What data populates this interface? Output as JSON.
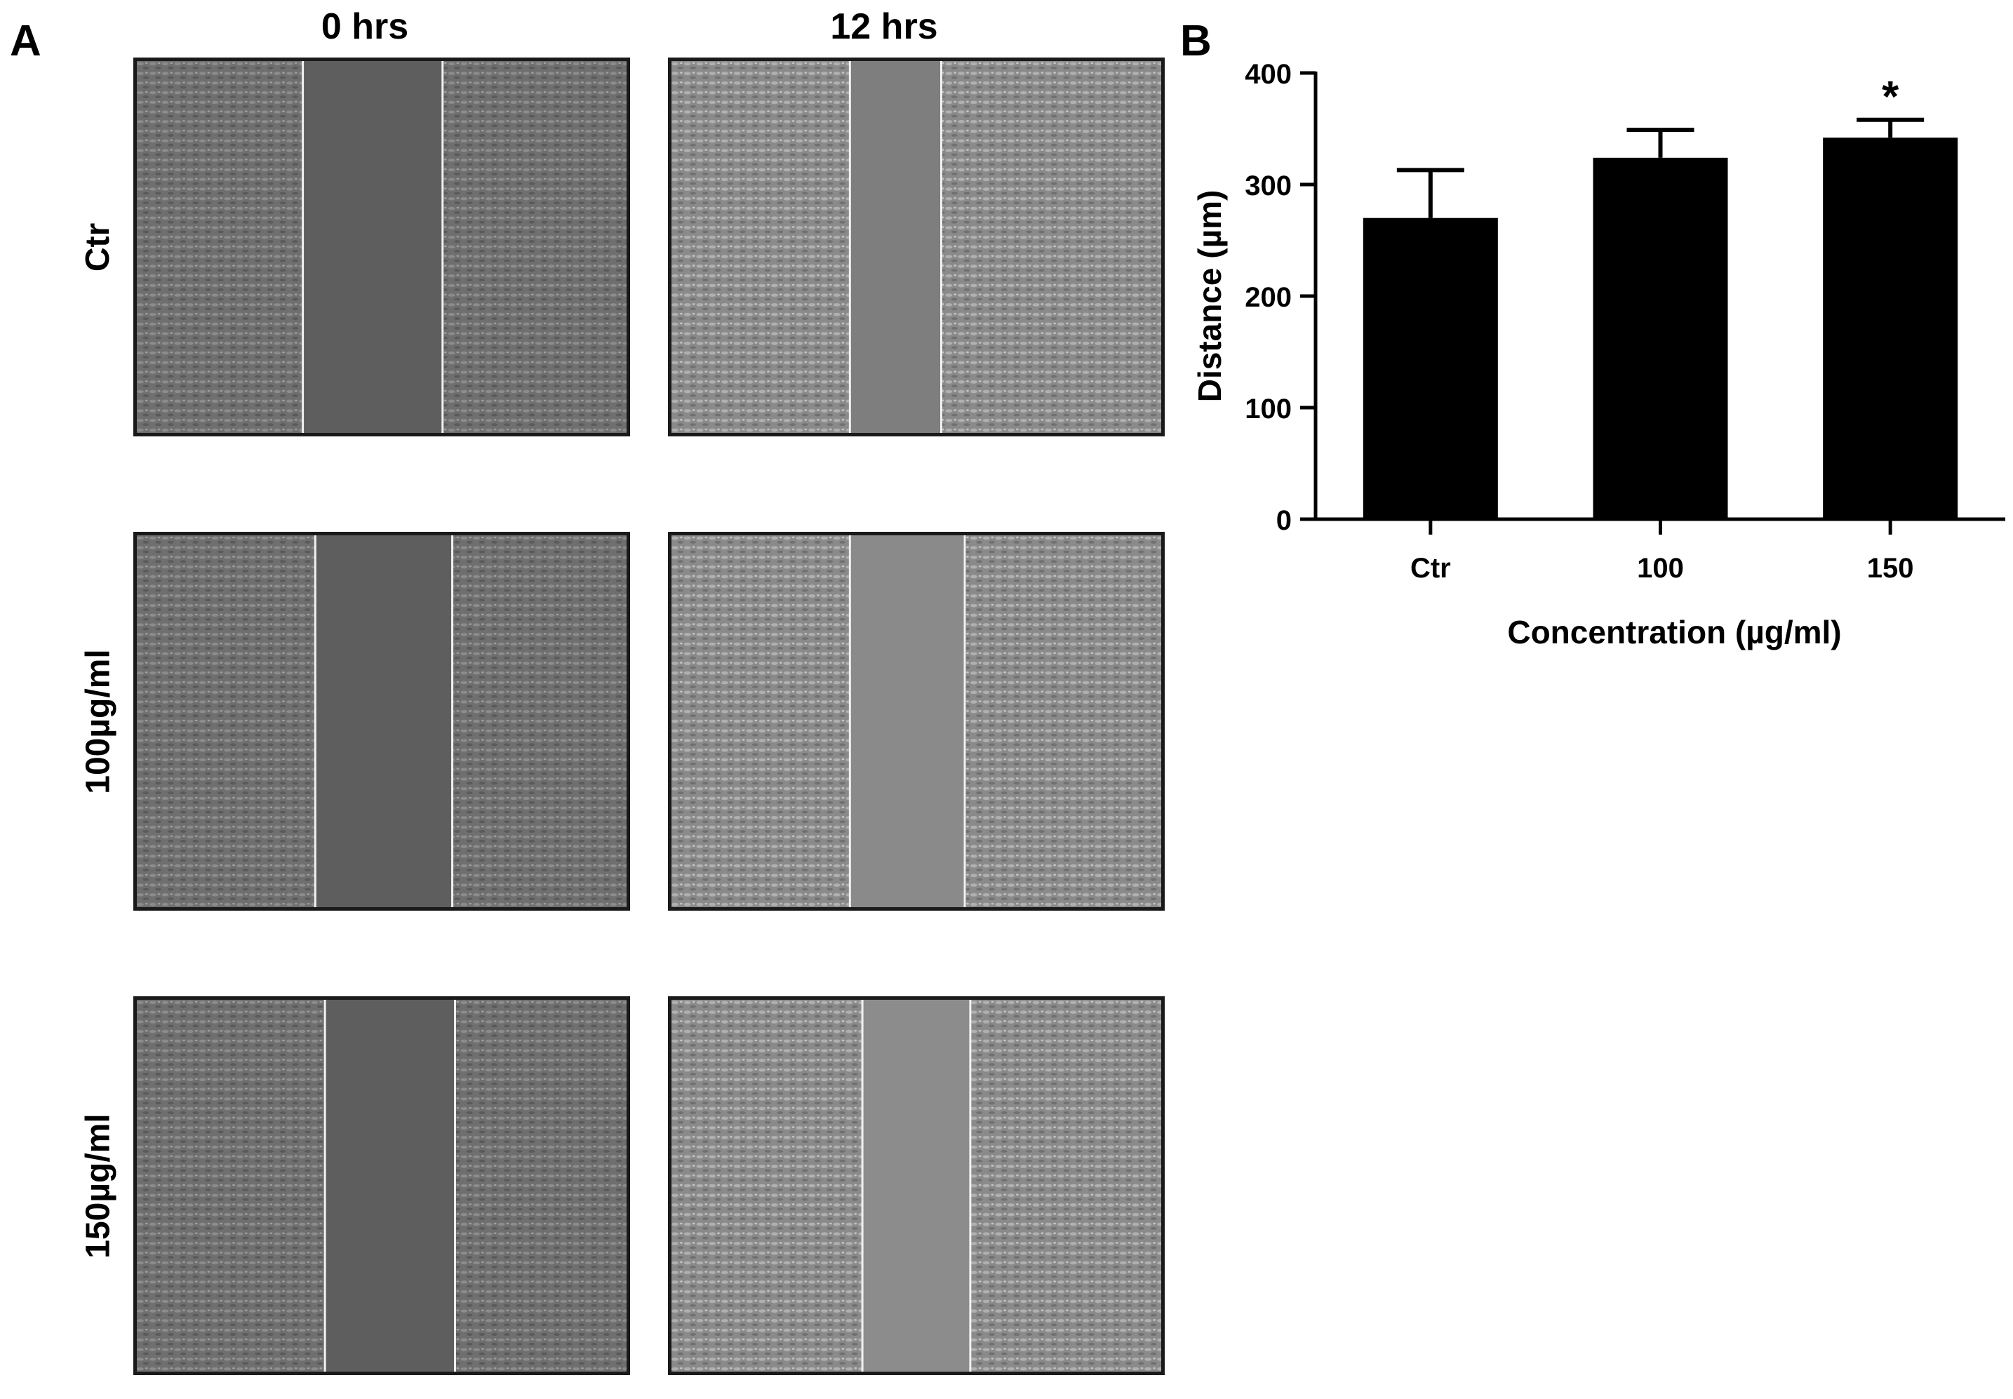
{
  "panel_a": {
    "letter": "A",
    "columns": [
      "0 hrs",
      "12 hrs"
    ],
    "rows": [
      "Ctr",
      "100µg/ml",
      "150µg/ml"
    ]
  },
  "panel_b": {
    "letter": "B"
  },
  "chart_data": {
    "type": "bar",
    "categories": [
      "Ctr",
      "100",
      "150"
    ],
    "values": [
      270,
      324,
      342
    ],
    "errors": [
      43,
      25,
      16
    ],
    "annotations": [
      "",
      "",
      "*"
    ],
    "xlabel": "Concentration (µg/ml)",
    "ylabel": "Distance (µm)",
    "ylim": [
      0,
      400
    ],
    "yticks": [
      0,
      100,
      200,
      300,
      400
    ],
    "bar_color": "#000000",
    "grid": false
  }
}
